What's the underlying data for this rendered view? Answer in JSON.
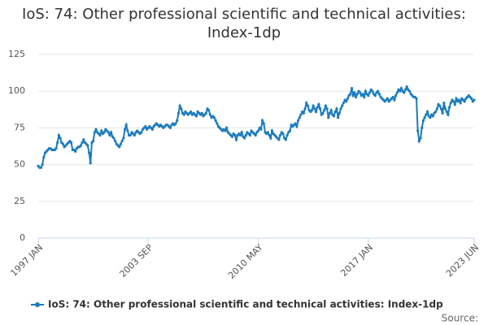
{
  "chart_data": {
    "type": "line",
    "title": "IoS: 74: Other professional scientific and technical activities: Index-1dp",
    "source": "Source:",
    "categories": [
      "1997 JAN",
      null,
      null,
      null,
      null,
      null,
      null,
      null,
      null,
      null,
      null,
      null,
      null,
      null,
      null,
      null,
      null,
      null,
      null,
      null,
      null,
      null,
      null,
      null,
      null,
      null,
      null,
      null,
      null,
      null,
      null,
      null,
      null,
      null,
      null,
      null,
      null,
      null,
      null,
      null,
      null,
      null,
      null,
      null,
      null,
      null,
      null,
      null,
      null,
      null,
      null,
      null,
      null,
      null,
      null,
      null,
      null,
      null,
      null,
      null,
      null,
      null,
      null,
      null,
      null,
      null,
      null,
      null,
      null,
      null,
      null,
      null,
      null,
      null,
      null,
      null,
      null,
      null,
      null,
      null,
      "2003 SEP",
      null,
      null,
      null,
      null,
      null,
      null,
      null,
      null,
      null,
      null,
      null,
      null,
      null,
      null,
      null,
      null,
      null,
      null,
      null,
      null,
      null,
      null,
      null,
      null,
      null,
      null,
      null,
      null,
      null,
      null,
      null,
      null,
      null,
      null,
      null,
      null,
      null,
      null,
      null,
      null,
      null,
      null,
      null,
      null,
      null,
      null,
      null,
      null,
      null,
      null,
      null,
      null,
      null,
      null,
      null,
      null,
      null,
      null,
      null,
      null,
      null,
      null,
      null,
      null,
      null,
      null,
      null,
      null,
      null,
      null,
      null,
      null,
      null,
      null,
      null,
      null,
      null,
      null,
      null,
      "2010 MAY",
      null,
      null,
      null,
      null,
      null,
      null,
      null,
      null,
      null,
      null,
      null,
      null,
      null,
      null,
      null,
      null,
      null,
      null,
      null,
      null,
      null,
      null,
      null,
      null,
      null,
      null,
      null,
      null,
      null,
      null,
      null,
      null,
      null,
      null,
      null,
      null,
      null,
      null,
      null,
      null,
      null,
      null,
      null,
      null,
      null,
      null,
      null,
      null,
      null,
      null,
      null,
      null,
      null,
      null,
      null,
      null,
      null,
      null,
      null,
      null,
      null,
      null,
      null,
      null,
      null,
      null,
      null,
      null,
      null,
      null,
      null,
      null,
      null,
      null,
      null,
      null,
      null,
      null,
      null,
      "2017 JAN",
      null,
      null,
      null,
      null,
      null,
      null,
      null,
      null,
      null,
      null,
      null,
      null,
      null,
      null,
      null,
      null,
      null,
      null,
      null,
      null,
      null,
      null,
      null,
      null,
      null,
      null,
      null,
      null,
      null,
      null,
      null,
      null,
      null,
      null,
      null,
      null,
      null,
      null,
      null,
      null,
      null,
      null,
      null,
      null,
      null,
      null,
      null,
      null,
      null,
      null,
      null,
      null,
      null,
      null,
      null,
      null,
      null,
      null,
      null,
      null,
      null,
      null,
      null,
      null,
      null,
      null,
      null,
      null,
      null,
      null,
      null,
      null,
      null,
      null,
      null,
      null,
      "2023 JUN"
    ],
    "series": [
      {
        "name": "IoS: 74: Other professional scientific and technical activities: Index-1dp",
        "color": "#1a7bbf",
        "values": [
          49,
          48,
          48,
          50,
          55,
          58,
          59,
          60,
          61,
          61,
          60,
          60,
          60,
          61,
          65,
          70,
          68,
          65,
          64,
          62,
          63,
          64,
          65,
          66,
          65,
          60,
          60,
          59,
          61,
          62,
          62,
          63,
          65,
          67,
          65,
          64,
          63,
          58,
          51,
          65,
          66,
          72,
          74,
          72,
          71,
          70,
          73,
          71,
          72,
          74,
          73,
          72,
          70,
          72,
          69,
          68,
          66,
          64,
          63,
          62,
          64,
          66,
          68,
          74,
          77,
          73,
          70,
          70,
          72,
          71,
          70,
          72,
          73,
          72,
          71,
          72,
          74,
          75,
          76,
          74,
          75,
          76,
          75,
          74,
          76,
          77,
          78,
          77,
          76,
          77,
          76,
          75,
          76,
          77,
          77,
          76,
          75,
          77,
          78,
          77,
          78,
          80,
          85,
          90,
          88,
          85,
          84,
          86,
          85,
          84,
          85,
          86,
          84,
          85,
          84,
          83,
          86,
          85,
          84,
          85,
          83,
          84,
          85,
          88,
          87,
          84,
          82,
          83,
          82,
          80,
          78,
          76,
          75,
          74,
          73,
          74,
          73,
          75,
          72,
          71,
          70,
          69,
          71,
          70,
          67,
          70,
          71,
          70,
          72,
          69,
          68,
          70,
          72,
          71,
          70,
          73,
          72,
          71,
          70,
          72,
          73,
          75,
          74,
          80,
          78,
          72,
          71,
          72,
          70,
          68,
          73,
          71,
          70,
          69,
          68,
          67,
          70,
          72,
          71,
          68,
          67,
          70,
          72,
          73,
          77,
          76,
          77,
          78,
          76,
          80,
          82,
          84,
          86,
          85,
          88,
          92,
          90,
          87,
          86,
          87,
          90,
          88,
          86,
          89,
          91,
          88,
          84,
          85,
          87,
          90,
          88,
          82,
          85,
          87,
          84,
          83,
          86,
          88,
          82,
          85,
          88,
          90,
          92,
          94,
          93,
          95,
          97,
          98,
          102,
          97,
          99,
          96,
          98,
          100,
          99,
          97,
          98,
          96,
          100,
          98,
          97,
          99,
          101,
          100,
          98,
          97,
          99,
          100,
          98,
          96,
          95,
          94,
          93,
          94,
          95,
          93,
          94,
          95,
          96,
          94,
          97,
          99,
          101,
          100,
          102,
          100,
          99,
          101,
          103,
          101,
          100,
          98,
          97,
          96,
          96,
          95,
          73,
          66,
          68,
          75,
          80,
          82,
          84,
          86,
          83,
          82,
          84,
          83,
          85,
          86,
          88,
          91,
          90,
          88,
          85,
          92,
          88,
          86,
          84,
          89,
          92,
          94,
          93,
          91,
          95,
          93,
          94,
          92,
          95,
          94,
          93,
          95,
          96,
          97,
          96,
          95,
          93,
          94
        ]
      }
    ],
    "ylim": [
      0,
      125
    ],
    "yticks": [
      0,
      25,
      50,
      75,
      100,
      125
    ],
    "grid": true,
    "legend": "bottom"
  }
}
